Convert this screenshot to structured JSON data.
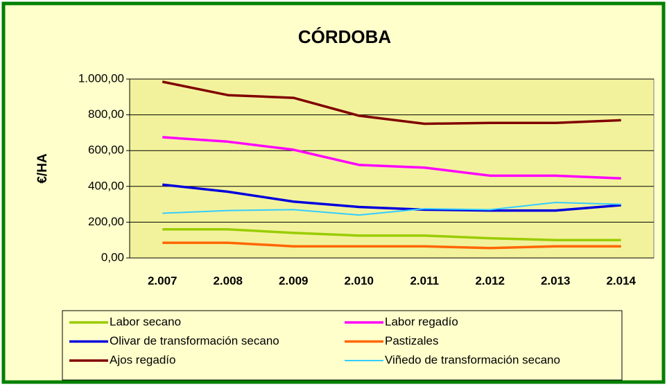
{
  "chart_data": {
    "type": "line",
    "title": "CÓRDOBA",
    "y_label": "€/HA",
    "categories": [
      "2.007",
      "2.008",
      "2.009",
      "2.010",
      "2.011",
      "2.012",
      "2.013",
      "2.014"
    ],
    "series": [
      {
        "name": "Labor secano",
        "color": "#99cc00",
        "values": [
          160,
          160,
          140,
          125,
          125,
          110,
          100,
          100
        ]
      },
      {
        "name": "Labor regadío",
        "color": "#ff00ff",
        "values": [
          675,
          650,
          605,
          520,
          505,
          460,
          460,
          445
        ]
      },
      {
        "name": "Olivar de transformación secano",
        "color": "#0000dd",
        "values": [
          410,
          370,
          315,
          285,
          270,
          265,
          265,
          295
        ]
      },
      {
        "name": "Pastizales",
        "color": "#ff6600",
        "values": [
          85,
          85,
          65,
          65,
          65,
          55,
          65,
          65
        ]
      },
      {
        "name": "Ajos regadío",
        "color": "#800000",
        "values": [
          985,
          910,
          895,
          795,
          750,
          755,
          755,
          770
        ]
      },
      {
        "name": "Viñedo de transformación secano",
        "color": "#33ccff",
        "values": [
          250,
          265,
          270,
          240,
          275,
          270,
          310,
          300
        ]
      }
    ],
    "ylim": [
      0,
      1000
    ],
    "yticks": [
      {
        "value": 0,
        "label": "0,00"
      },
      {
        "value": 200,
        "label": "200,00"
      },
      {
        "value": 400,
        "label": "400,00"
      },
      {
        "value": 600,
        "label": "600,00"
      },
      {
        "value": 800,
        "label": "800,00"
      },
      {
        "value": 1000,
        "label": "1.000,00"
      }
    ],
    "grid": true,
    "legend": "bottom"
  }
}
